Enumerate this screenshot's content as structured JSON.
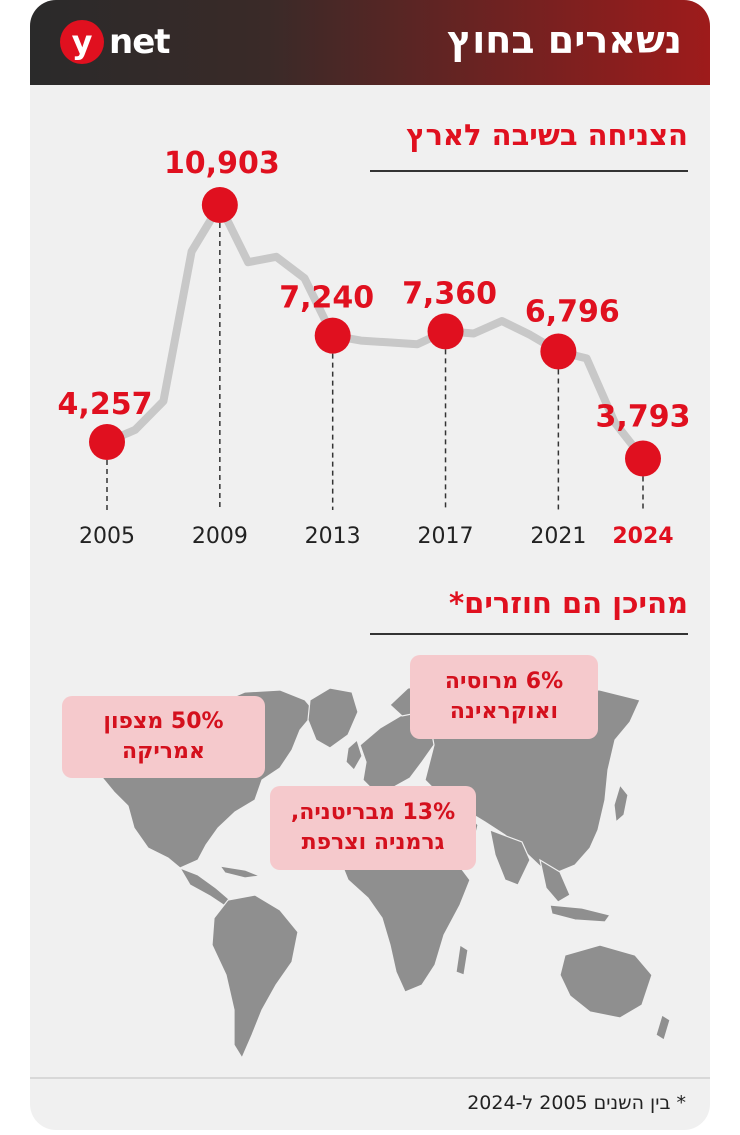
{
  "header": {
    "logo_letter": "y",
    "logo_word": "net",
    "title": "נשארים בחוץ"
  },
  "chart_section": {
    "title": "הצניחה בשיבה לארץ"
  },
  "map_section": {
    "title": "מהיכן הם חוזרים*"
  },
  "chart_data": {
    "type": "line",
    "title": "הצניחה בשיבה לארץ",
    "xlabel": "",
    "ylabel": "",
    "x": [
      2005,
      2006,
      2007,
      2008,
      2009,
      2010,
      2011,
      2012,
      2013,
      2014,
      2015,
      2016,
      2017,
      2018,
      2019,
      2020,
      2021,
      2022,
      2023,
      2024
    ],
    "series": [
      {
        "values": [
          4257,
          4600,
          5400,
          9600,
          10903,
          9300,
          9450,
          8850,
          7240,
          7100,
          7050,
          7000,
          7360,
          7300,
          7650,
          7260,
          6796,
          6600,
          4800,
          3793
        ]
      }
    ],
    "labeled_points": [
      {
        "year": "2005",
        "value": 4257,
        "label": "4,257",
        "tick": "2005",
        "highlight": false
      },
      {
        "year": "2009",
        "value": 10903,
        "label": "10,903",
        "tick": "2009",
        "highlight": false
      },
      {
        "year": "2013",
        "value": 7240,
        "label": "7,240",
        "tick": "2013",
        "highlight": false
      },
      {
        "year": "2017",
        "value": 7360,
        "label": "7,360",
        "tick": "2017",
        "highlight": false
      },
      {
        "year": "2021",
        "value": 6796,
        "label": "6,796",
        "tick": "2021",
        "highlight": false
      },
      {
        "year": "2024",
        "value": 3793,
        "label": "3,793",
        "tick": "2024",
        "highlight": true
      }
    ],
    "colors": {
      "line": "#c8c8c8",
      "marker": "#e0101f",
      "label": "#e0101f",
      "tick": "#222222",
      "tick_highlight": "#e0101f"
    },
    "grid": false
  },
  "map_callouts": [
    {
      "line1": "50% מצפון",
      "line2": "אמריקה"
    },
    {
      "line1": "6% מרוסיה",
      "line2": "ואוקראינה"
    },
    {
      "line1": "13% מבריטניה,",
      "line2": "גרמניה וצרפת"
    }
  ],
  "footnote": "* בין השנים 2005 ל-2024",
  "colors": {
    "accent": "#e0101f",
    "callout_bg": "#f5c9cc",
    "map_land": "#8f8f8f",
    "card_bg": "#f0f0f0"
  }
}
